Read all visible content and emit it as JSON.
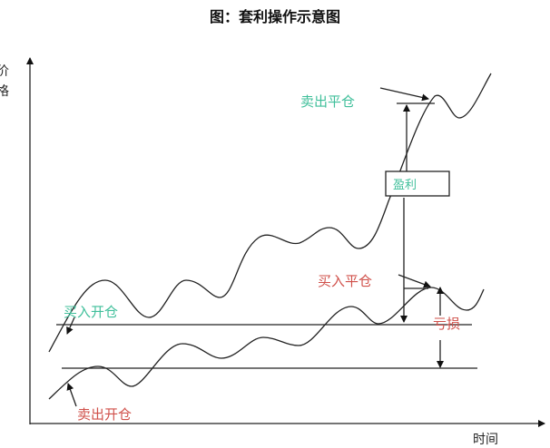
{
  "title": "图：套利操作示意图",
  "axes": {
    "y_label": "价格",
    "x_label": "时间"
  },
  "labels": {
    "sell_close": "卖出平仓",
    "profit": "盈利",
    "buy_close": "买入平仓",
    "loss": "亏损",
    "buy_open": "买入开仓",
    "sell_open": "卖出开仓"
  },
  "colors": {
    "open_close_sell_upper": "#3fbf9a",
    "open_close_buy_lower": "#d0504a",
    "lines": "#222222"
  }
}
